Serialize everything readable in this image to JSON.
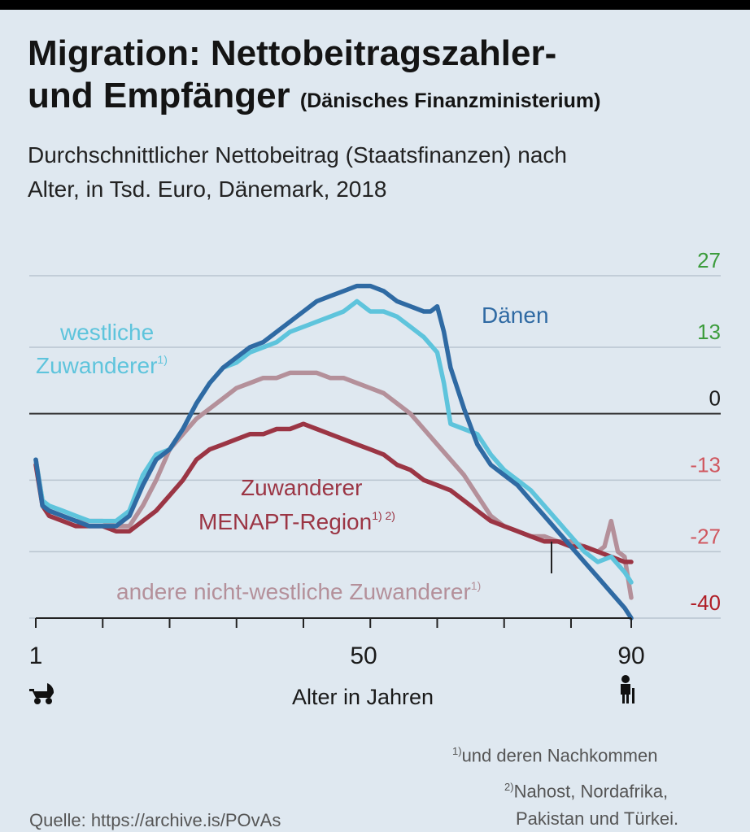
{
  "title": {
    "line1": "Migration: Nettobeitragszahler-",
    "line2": "und Empfänger",
    "source_note": "(Dänisches Finanzministerium)"
  },
  "subtitle": {
    "line1": "Durchschnittlicher Nettobeitrag (Staatsfinanzen) nach",
    "line2": "Alter, in Tsd. Euro, Dänemark, 2018"
  },
  "footnotes": {
    "note1_mark": "1)",
    "note1_text": "und deren Nachkommen",
    "note2_mark": "2)",
    "note2_text": "Nahost, Nordafrika,",
    "note2_text_2": "Pakistan und Türkei."
  },
  "source": "Quelle: https://archive.is/POvAs",
  "colors": {
    "background": "#dfe8f0",
    "danen": "#2f6aa3",
    "westliche": "#5ec4dc",
    "menapt": "#9b3544",
    "andere": "#b4909a",
    "positive_tick": "#3c9c3c",
    "negative_tick_light": "#d0575f",
    "negative_tick_dark": "#b01e26"
  },
  "icons": {
    "child": "stroller-icon",
    "senior": "elderly-person-icon"
  },
  "chart_data": {
    "type": "line",
    "title": "Durchschnittlicher Nettobeitrag (Staatsfinanzen) nach Alter, in Tsd. Euro, Dänemark, 2018",
    "xlabel": "Alter in Jahren",
    "ylabel": "",
    "xlim": [
      1,
      90
    ],
    "ylim": [
      -40,
      27
    ],
    "x_ticks": [
      1,
      50,
      90
    ],
    "y_ticks": [
      27,
      13,
      0,
      -13,
      -27,
      -40
    ],
    "grid": true,
    "series": [
      {
        "name": "Dänen",
        "color": "#2f6aa3",
        "x": [
          1,
          2,
          3,
          5,
          7,
          9,
          11,
          13,
          15,
          17,
          19,
          21,
          23,
          25,
          27,
          29,
          31,
          33,
          35,
          37,
          39,
          41,
          43,
          45,
          47,
          49,
          51,
          53,
          55,
          57,
          59,
          60,
          61,
          62,
          63,
          65,
          67,
          69,
          71,
          73,
          75,
          77,
          79,
          81,
          83,
          85,
          87,
          89,
          90
        ],
        "values": [
          -9,
          -18,
          -19,
          -20,
          -21,
          -22,
          -22,
          -22,
          -20,
          -14,
          -9,
          -7,
          -3,
          2,
          6,
          9,
          11,
          13,
          14,
          16,
          18,
          20,
          22,
          23,
          24,
          25,
          25,
          24,
          22,
          21,
          20,
          20,
          21,
          16,
          9,
          1,
          -6,
          -10,
          -12,
          -14,
          -17,
          -20,
          -23,
          -26,
          -29,
          -32,
          -35,
          -38,
          -40
        ]
      },
      {
        "name": "westliche Zuwanderer",
        "note": "1)",
        "color": "#5ec4dc",
        "x": [
          1,
          2,
          3,
          5,
          7,
          9,
          11,
          13,
          15,
          17,
          19,
          21,
          23,
          25,
          27,
          29,
          31,
          33,
          35,
          37,
          39,
          41,
          43,
          45,
          47,
          49,
          50,
          51,
          53,
          55,
          57,
          59,
          61,
          62,
          63,
          65,
          67,
          69,
          71,
          73,
          75,
          77,
          79,
          81,
          83,
          85,
          87,
          89,
          90
        ],
        "values": [
          -9,
          -17,
          -18,
          -19,
          -20,
          -21,
          -21,
          -21,
          -19,
          -12,
          -8,
          -7,
          -3,
          2,
          6,
          9,
          10,
          12,
          13,
          14,
          16,
          17,
          18,
          19,
          20,
          22,
          21,
          20,
          20,
          19,
          17,
          15,
          12,
          6,
          -2,
          -3,
          -4,
          -8,
          -11,
          -13,
          -15,
          -18,
          -21,
          -24,
          -27,
          -29,
          -28,
          -31,
          -33
        ]
      },
      {
        "name": "Zuwanderer MENAPT-Region",
        "note": "1) 2)",
        "color": "#9b3544",
        "x": [
          1,
          2,
          3,
          5,
          7,
          9,
          11,
          13,
          15,
          17,
          19,
          21,
          23,
          25,
          27,
          29,
          31,
          33,
          35,
          37,
          39,
          41,
          43,
          45,
          47,
          49,
          51,
          53,
          55,
          57,
          59,
          61,
          63,
          65,
          67,
          69,
          71,
          73,
          75,
          77,
          79,
          81,
          83,
          85,
          87,
          89,
          90
        ],
        "values": [
          -10,
          -18,
          -20,
          -21,
          -22,
          -22,
          -22,
          -23,
          -23,
          -21,
          -19,
          -16,
          -13,
          -9,
          -7,
          -6,
          -5,
          -4,
          -4,
          -3,
          -3,
          -2,
          -3,
          -4,
          -5,
          -6,
          -7,
          -8,
          -10,
          -11,
          -13,
          -14,
          -15,
          -17,
          -19,
          -21,
          -22,
          -23,
          -24,
          -25,
          -25,
          -26,
          -26,
          -27,
          -28,
          -29,
          -29
        ]
      },
      {
        "name": "andere nicht-westliche Zuwanderer",
        "note": "1)",
        "color": "#b4909a",
        "x": [
          1,
          2,
          3,
          5,
          7,
          9,
          11,
          13,
          15,
          17,
          19,
          21,
          23,
          25,
          27,
          29,
          31,
          33,
          35,
          37,
          39,
          41,
          43,
          45,
          47,
          49,
          51,
          53,
          55,
          57,
          59,
          61,
          63,
          65,
          67,
          69,
          71,
          73,
          75,
          77,
          79,
          81,
          83,
          85,
          86,
          87,
          88,
          89,
          90
        ],
        "values": [
          -9,
          -17,
          -19,
          -20,
          -21,
          -21,
          -21,
          -22,
          -22,
          -18,
          -13,
          -7,
          -4,
          -1,
          1,
          3,
          5,
          6,
          7,
          7,
          8,
          8,
          8,
          7,
          7,
          6,
          5,
          4,
          2,
          0,
          -3,
          -6,
          -9,
          -12,
          -16,
          -20,
          -22,
          -23,
          -24,
          -24,
          -25,
          -25,
          -26,
          -27,
          -26,
          -21,
          -27,
          -28,
          -36
        ]
      }
    ],
    "annotations": [
      {
        "text": "Dänen",
        "series": "Dänen"
      },
      {
        "text": "westliche",
        "text2": "Zuwanderer",
        "note": "1)",
        "series": "westliche Zuwanderer"
      },
      {
        "text": "Zuwanderer",
        "text2": "MENAPT-Region",
        "note": "1) 2)",
        "series": "Zuwanderer MENAPT-Region"
      },
      {
        "text": "andere nicht-westliche Zuwanderer",
        "note": "1)",
        "series": "andere nicht-westliche Zuwanderer"
      }
    ]
  }
}
